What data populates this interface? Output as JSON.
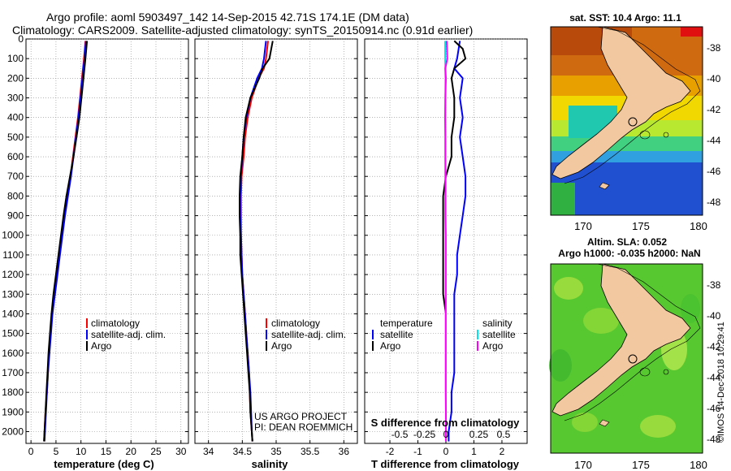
{
  "header": {
    "line1": "Argo profile: aoml 5903497_142 14-Sep-2015 42.71S 174.1E (DM data)",
    "line2": "Climatology: CARS2009. Satellite-adjusted climatology: synTS_20150914.nc (0.91d earlier)"
  },
  "side_label": "©IMOS 14-Dec-2018 10:29:41",
  "credit": {
    "line1": "US ARGO PROJECT",
    "line2": "PI: DEAN ROEMMICH"
  },
  "colors": {
    "climatology": "#ff0000",
    "satellite": "#0000ff",
    "argo": "#000000",
    "sat_temp": "#0000ff",
    "sat_sal": "#00e5ee",
    "argo_sal": "#ff00ff"
  },
  "chart_data": [
    {
      "type": "line",
      "title": "",
      "xlabel": "temperature (deg C)",
      "ylabel": "",
      "xlim": [
        -1,
        31.5
      ],
      "ylim": [
        2060,
        0
      ],
      "xticks": [
        0,
        5,
        10,
        15,
        20,
        25,
        30
      ],
      "yticks": [
        0,
        100,
        200,
        300,
        400,
        500,
        600,
        700,
        800,
        900,
        1000,
        1100,
        1200,
        1300,
        1400,
        1500,
        1600,
        1700,
        1800,
        1900,
        2000
      ],
      "legend": {
        "placement": "lower-middle",
        "entries": [
          "climatology",
          "satellite-adj. clim.",
          "Argo"
        ]
      },
      "series": [
        {
          "name": "climatology",
          "color": "#ff0000",
          "depth": [
            10,
            100,
            200,
            300,
            400,
            500,
            600,
            700,
            800,
            900,
            1000,
            1100,
            1200,
            1300,
            1400,
            1500,
            1600,
            1700,
            1800,
            1900,
            2000,
            2050
          ],
          "values": [
            10.9,
            10.6,
            10.2,
            9.8,
            9.4,
            8.9,
            8.4,
            7.9,
            7.3,
            6.7,
            6.2,
            5.7,
            5.2,
            4.7,
            4.2,
            3.9,
            3.6,
            3.4,
            3.2,
            2.9,
            2.7,
            2.6
          ]
        },
        {
          "name": "satellite-adj. clim.",
          "color": "#0000ff",
          "depth": [
            10,
            100,
            200,
            300,
            400,
            500,
            600,
            700,
            800,
            900,
            1000,
            1100,
            1200,
            1300,
            1400,
            1500,
            1600,
            1700,
            1800,
            1900,
            2000,
            2050
          ],
          "values": [
            11.0,
            10.7,
            10.3,
            9.9,
            9.5,
            9.0,
            8.5,
            8.0,
            7.4,
            6.8,
            6.3,
            5.8,
            5.3,
            4.8,
            4.3,
            4.0,
            3.7,
            3.4,
            3.2,
            3.0,
            2.8,
            2.7
          ]
        },
        {
          "name": "Argo",
          "color": "#000000",
          "depth": [
            10,
            100,
            200,
            300,
            400,
            500,
            600,
            700,
            800,
            900,
            1000,
            1100,
            1200,
            1300,
            1400,
            1500,
            1600,
            1700,
            1800,
            1900,
            2000,
            2050
          ],
          "values": [
            11.2,
            10.9,
            10.5,
            10.1,
            9.7,
            9.1,
            8.5,
            7.8,
            7.1,
            6.5,
            6.0,
            5.5,
            5.0,
            4.5,
            4.1,
            3.8,
            3.5,
            3.3,
            3.1,
            2.9,
            2.7,
            2.6
          ]
        }
      ]
    },
    {
      "type": "line",
      "title": "",
      "xlabel": "salinity",
      "ylabel": "",
      "xlim": [
        33.8,
        36.2
      ],
      "ylim": [
        2060,
        0
      ],
      "xticks": [
        34,
        34.5,
        35,
        35.5,
        36
      ],
      "legend": {
        "placement": "lower-right",
        "entries": [
          "climatology",
          "satellite-adj. clim.",
          "Argo"
        ]
      },
      "series": [
        {
          "name": "climatology",
          "color": "#ff0000",
          "depth": [
            10,
            100,
            150,
            200,
            300,
            400,
            500,
            600,
            700,
            800,
            900,
            1000,
            1100,
            1200,
            1300,
            1400,
            1500,
            1600,
            1700,
            1800,
            1900,
            2000,
            2050
          ],
          "values": [
            34.88,
            34.85,
            34.82,
            34.74,
            34.64,
            34.58,
            34.54,
            34.52,
            34.49,
            34.48,
            34.48,
            34.48,
            34.49,
            34.5,
            34.52,
            34.54,
            34.56,
            34.58,
            34.6,
            34.61,
            34.62,
            34.64,
            34.65
          ]
        },
        {
          "name": "satellite-adj. clim.",
          "color": "#0000ff",
          "depth": [
            10,
            100,
            150,
            200,
            300,
            400,
            500,
            600,
            700,
            800,
            900,
            1000,
            1100,
            1200,
            1300,
            1400,
            1500,
            1600,
            1700,
            1800,
            1900,
            2000,
            2050
          ],
          "values": [
            34.85,
            34.82,
            34.79,
            34.72,
            34.62,
            34.56,
            34.52,
            34.5,
            34.48,
            34.47,
            34.47,
            34.48,
            34.49,
            34.5,
            34.52,
            34.54,
            34.56,
            34.58,
            34.6,
            34.62,
            34.63,
            34.64,
            34.65
          ]
        },
        {
          "name": "Argo",
          "color": "#000000",
          "depth": [
            10,
            100,
            150,
            200,
            300,
            400,
            500,
            600,
            700,
            800,
            900,
            1000,
            1100,
            1200,
            1300,
            1400,
            1500,
            1600,
            1700,
            1800,
            1900,
            2000,
            2050
          ],
          "values": [
            34.95,
            34.9,
            34.8,
            34.75,
            34.62,
            34.55,
            34.52,
            34.5,
            34.47,
            34.46,
            34.46,
            34.47,
            34.47,
            34.49,
            34.51,
            34.53,
            34.55,
            34.57,
            34.59,
            34.61,
            34.62,
            34.64,
            34.65
          ]
        }
      ]
    },
    {
      "type": "line",
      "title": "S difference from climatology",
      "xlabel": "T difference from climatology",
      "ylabel": "",
      "xlim": [
        -2.9,
        2.9
      ],
      "ylim": [
        2060,
        0
      ],
      "xticks": [
        -2,
        -1,
        0,
        1,
        2
      ],
      "s_tick_labels": [
        "-0.5",
        "-0.25",
        "0",
        "0.25",
        "0.5"
      ],
      "legend": {
        "placement": "lower-left and lower-right",
        "entries": [
          "temperature",
          "satellite",
          "Argo",
          "salinity",
          "satellite",
          "Argo"
        ]
      },
      "series": [
        {
          "name": "temperature satellite",
          "color": "#0000ff",
          "depth": [
            10,
            100,
            150,
            200,
            300,
            400,
            500,
            600,
            700,
            800,
            900,
            1000,
            1100,
            1200,
            1300,
            1400,
            1500,
            1600,
            1700,
            1800,
            1900,
            2000,
            2050
          ],
          "values": [
            0.5,
            0.4,
            0.3,
            0.6,
            0.5,
            0.6,
            0.5,
            0.6,
            0.7,
            0.7,
            0.6,
            0.5,
            0.4,
            0.4,
            0.3,
            0.3,
            0.3,
            0.3,
            0.3,
            0.2,
            0.2,
            0.1,
            0.1
          ]
        },
        {
          "name": "temperature Argo",
          "color": "#000000",
          "depth": [
            10,
            50,
            100,
            150,
            200,
            300,
            400,
            500,
            600,
            700,
            800,
            900,
            1000,
            1100,
            1200,
            1300,
            1400,
            1500,
            1600,
            1700,
            1800,
            1900,
            2000,
            2050
          ],
          "values": [
            0.3,
            0.6,
            0.7,
            0.3,
            0.2,
            0.3,
            0.3,
            0.2,
            0.2,
            0.0,
            -0.1,
            -0.1,
            -0.1,
            -0.1,
            -0.1,
            -0.1,
            0.0,
            0.0,
            0.0,
            0.0,
            0.0,
            0.0,
            0.0,
            0.0
          ]
        },
        {
          "name": "salinity satellite",
          "color": "#00e5ee",
          "depth": [
            10,
            100,
            200,
            300,
            400,
            500,
            600,
            700,
            800,
            900,
            1000,
            1100,
            1200,
            1300,
            1400,
            1500,
            1600,
            1700,
            1800,
            1900,
            2000,
            2050
          ],
          "values": [
            -0.03,
            -0.03,
            -0.02,
            -0.02,
            -0.02,
            -0.02,
            -0.02,
            -0.01,
            -0.01,
            -0.01,
            0.0,
            0.0,
            0.0,
            0.0,
            0.0,
            0.0,
            0.0,
            0.0,
            0.0,
            0.0,
            0.0,
            0.0
          ]
        },
        {
          "name": "salinity Argo",
          "color": "#ff00ff",
          "depth": [
            10,
            100,
            150,
            200,
            300,
            400,
            500,
            600,
            700,
            800,
            900,
            1000,
            1100,
            1200,
            1300,
            1400,
            1500,
            1600,
            1700,
            1800,
            1900,
            2000,
            2050
          ],
          "values": [
            0.03,
            0.05,
            -0.02,
            0.0,
            -0.02,
            -0.03,
            -0.02,
            -0.02,
            -0.02,
            -0.02,
            -0.02,
            -0.01,
            -0.01,
            -0.01,
            -0.01,
            -0.01,
            -0.01,
            -0.01,
            -0.01,
            -0.01,
            0.0,
            0.0,
            0.0
          ]
        }
      ]
    },
    {
      "type": "heatmap",
      "title": "sat. SST: 10.4 Argo: 11.1",
      "lon_ticks": [
        "170",
        "175",
        "180"
      ],
      "lat_ticks": [
        "-38",
        "-40",
        "-42",
        "-44",
        "-46",
        "-48"
      ],
      "profile_location": {
        "lat": -42.71,
        "lon": 174.1
      }
    },
    {
      "type": "heatmap",
      "title": "Altim. SLA: 0.052",
      "subtitle": "Argo h1000: -0.035 h2000: NaN",
      "lon_ticks": [
        "170",
        "175",
        "180"
      ],
      "lat_ticks": [
        "-38",
        "-40",
        "-42",
        "-44",
        "-46",
        "-48"
      ],
      "profile_location": {
        "lat": -42.71,
        "lon": 174.1
      }
    }
  ]
}
